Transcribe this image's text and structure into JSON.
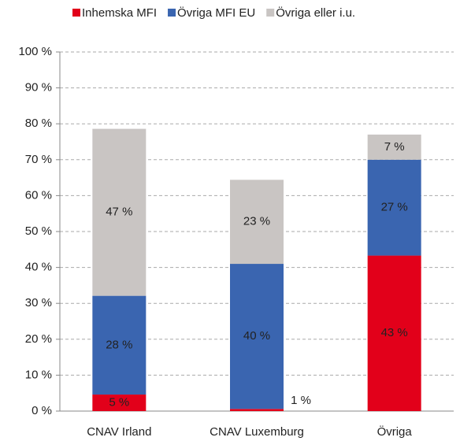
{
  "chart_data": {
    "type": "stacked_bar",
    "categories": [
      "CNAV Irland",
      "CNAV Luxemburg",
      "Övriga"
    ],
    "series": [
      {
        "name": "Inhemska MFI",
        "color": "#e2001a",
        "values": [
          4.6,
          0.6,
          43.3
        ],
        "value_labels": [
          "5 %",
          "1 %",
          "43 %"
        ]
      },
      {
        "name": "Övriga MFI EU",
        "color": "#3a65b0",
        "values": [
          27.5,
          40.4,
          26.7
        ],
        "value_labels": [
          "28 %",
          "40 %",
          "27 %"
        ]
      },
      {
        "name": "Övriga eller i.u.",
        "color": "#c9c5c3",
        "values": [
          46.5,
          23.4,
          7.0
        ],
        "value_labels": [
          "47 %",
          "23 %",
          "7 %"
        ]
      }
    ],
    "ylim": [
      0,
      100
    ],
    "yticks": [
      {
        "value": 0,
        "label": "0 %"
      },
      {
        "value": 10,
        "label": "10 %"
      },
      {
        "value": 20,
        "label": "20 %"
      },
      {
        "value": 30,
        "label": "30 %"
      },
      {
        "value": 40,
        "label": "40 %"
      },
      {
        "value": 50,
        "label": "50 %"
      },
      {
        "value": 60,
        "label": "60 %"
      },
      {
        "value": 70,
        "label": "70 %"
      },
      {
        "value": 80,
        "label": "80 %"
      },
      {
        "value": 90,
        "label": "90 %"
      },
      {
        "value": 100,
        "label": "100 %"
      }
    ],
    "grid": true,
    "legend": "top"
  }
}
